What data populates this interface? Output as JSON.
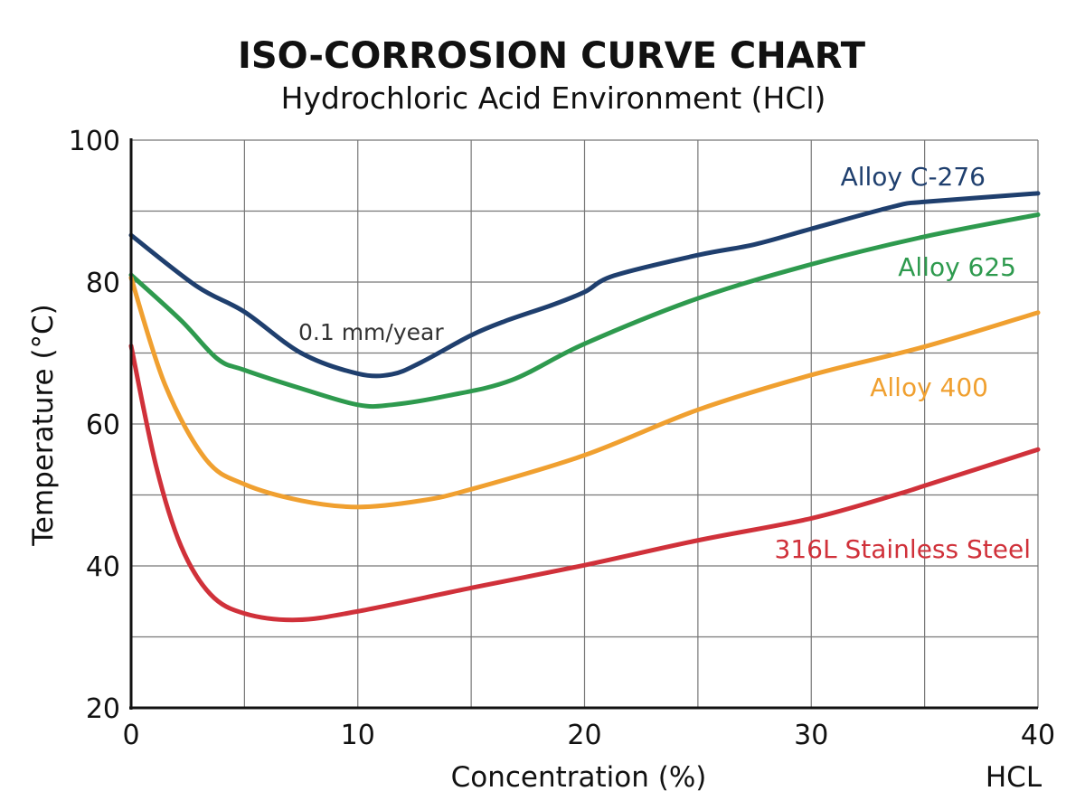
{
  "chart_data": {
    "type": "line",
    "title": "ISO-CORROSION CURVE CHART",
    "subtitle": "Hydrochloric Acid Environment (HCl)",
    "xlabel": "Concentration (%)",
    "ylabel": "Temperature (°C)",
    "x_extra_label": "HCL",
    "annotation": "0.1 mm/year",
    "xlim": [
      0,
      40
    ],
    "ylim": [
      20,
      100
    ],
    "x_ticks": [
      "0",
      "10",
      "20",
      "30",
      "40"
    ],
    "y_ticks": [
      "20",
      "40",
      "60",
      "80",
      "100"
    ],
    "grid": true,
    "legend": "inline labels at right end of curves",
    "series": [
      {
        "name": "Alloy C-276",
        "color": "#1f3f6e",
        "points": [
          [
            0,
            86.6
          ],
          [
            2.9,
            79.4
          ],
          [
            5,
            75.8
          ],
          [
            7.5,
            70
          ],
          [
            10,
            67.1
          ],
          [
            11.5,
            67
          ],
          [
            12.8,
            68.7
          ],
          [
            15,
            72.5
          ],
          [
            16.5,
            74.5
          ],
          [
            18.6,
            76.8
          ],
          [
            20,
            78.6
          ],
          [
            21.3,
            80.9
          ],
          [
            25,
            83.8
          ],
          [
            27.5,
            85.3
          ],
          [
            30,
            87.5
          ],
          [
            33.7,
            90.7
          ],
          [
            35,
            91.3
          ],
          [
            40,
            92.5
          ]
        ]
      },
      {
        "name": "Alloy 625",
        "color": "#2e9a4e",
        "points": [
          [
            0,
            81
          ],
          [
            2.2,
            74.6
          ],
          [
            3.8,
            69.2
          ],
          [
            5,
            67.6
          ],
          [
            7.5,
            65
          ],
          [
            10,
            62.7
          ],
          [
            11.5,
            62.7
          ],
          [
            14,
            64
          ],
          [
            16.8,
            66.2
          ],
          [
            20,
            71.3
          ],
          [
            25,
            77.7
          ],
          [
            30,
            82.5
          ],
          [
            35,
            86.4
          ],
          [
            40,
            89.5
          ]
        ]
      },
      {
        "name": "Alloy 400",
        "color": "#f0a030",
        "points": [
          [
            0,
            80.6
          ],
          [
            1.5,
            65.5
          ],
          [
            3.3,
            55
          ],
          [
            5,
            51.5
          ],
          [
            7.5,
            49.2
          ],
          [
            10,
            48.3
          ],
          [
            12.8,
            49.2
          ],
          [
            15,
            50.8
          ],
          [
            20,
            55.6
          ],
          [
            25,
            62
          ],
          [
            30,
            66.9
          ],
          [
            35,
            70.9
          ],
          [
            40,
            75.7
          ]
        ]
      },
      {
        "name": "316L Stainless Steel",
        "color": "#d0313a",
        "points": [
          [
            0,
            71
          ],
          [
            1.1,
            54.1
          ],
          [
            2.2,
            42.8
          ],
          [
            3.5,
            36
          ],
          [
            5,
            33.3
          ],
          [
            7.3,
            32.4
          ],
          [
            10,
            33.6
          ],
          [
            15,
            36.9
          ],
          [
            20,
            40.1
          ],
          [
            25,
            43.6
          ],
          [
            30,
            46.7
          ],
          [
            33.7,
            50
          ],
          [
            35,
            51.3
          ],
          [
            40,
            56.4
          ]
        ]
      }
    ]
  }
}
